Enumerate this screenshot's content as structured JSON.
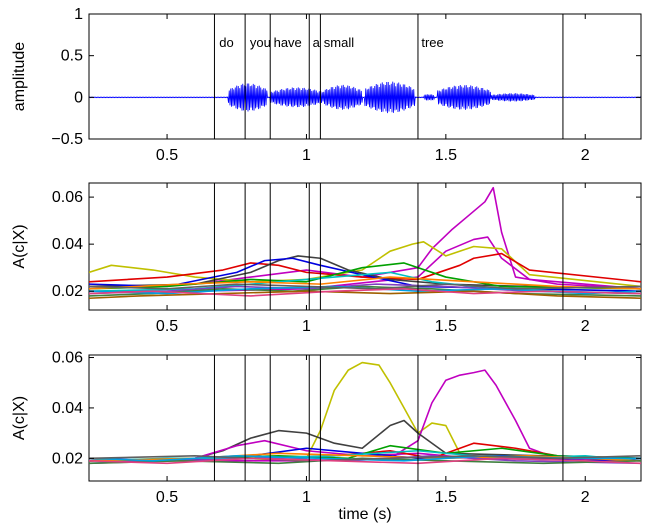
{
  "figure": {
    "xlabel": "time (s)",
    "x_range": [
      0.22,
      2.2
    ],
    "x_ticks": [
      0.5,
      1,
      1.5,
      2
    ],
    "x_tick_labels": [
      "0.5",
      "1",
      "1.5",
      "2"
    ]
  },
  "chart_data": [
    {
      "type": "line",
      "panel": "waveform",
      "ylabel": "amplitude",
      "ylim": [
        -0.5,
        1
      ],
      "y_ticks": [
        -0.5,
        0,
        0.5,
        1
      ],
      "y_tick_labels": [
        "−0.5",
        "0",
        "0.5",
        "1"
      ],
      "line_color": "#0000ff",
      "boundaries": [
        0.67,
        0.78,
        0.87,
        1.01,
        1.05,
        1.4,
        1.92
      ],
      "words": [
        {
          "t": 0.68,
          "label": "do"
        },
        {
          "t": 0.79,
          "label": "you"
        },
        {
          "t": 0.875,
          "label": "have"
        },
        {
          "t": 1.015,
          "label": "a"
        },
        {
          "t": 1.055,
          "label": "small"
        },
        {
          "t": 1.405,
          "label": "tree"
        }
      ],
      "bursts": [
        {
          "t0": 0.72,
          "t1": 0.86,
          "amp": 0.17
        },
        {
          "t0": 0.87,
          "t1": 1.06,
          "amp": 0.12
        },
        {
          "t0": 1.06,
          "t1": 1.2,
          "amp": 0.15
        },
        {
          "t0": 1.21,
          "t1": 1.39,
          "amp": 0.19
        },
        {
          "t0": 1.42,
          "t1": 1.46,
          "amp": 0.04
        },
        {
          "t0": 1.47,
          "t1": 1.66,
          "amp": 0.15
        },
        {
          "t0": 1.66,
          "t1": 1.82,
          "amp": 0.05
        }
      ]
    },
    {
      "type": "line",
      "panel": "middle",
      "ylabel": "A(c|X)",
      "ylim": [
        0.012,
        0.066
      ],
      "y_ticks": [
        0.02,
        0.04,
        0.06
      ],
      "y_tick_labels": [
        "0.02",
        "0.04",
        "0.06"
      ],
      "boundaries": [
        0.67,
        0.78,
        0.87,
        1.01,
        1.05,
        1.4,
        1.92
      ],
      "series": [
        {
          "color": "#c000c0",
          "x": [
            0.22,
            0.4,
            0.6,
            0.8,
            1.0,
            1.2,
            1.4,
            1.45,
            1.52,
            1.58,
            1.64,
            1.67,
            1.7,
            1.75,
            1.9,
            2.2
          ],
          "y": [
            0.022,
            0.022,
            0.023,
            0.026,
            0.029,
            0.026,
            0.03,
            0.038,
            0.046,
            0.052,
            0.058,
            0.064,
            0.045,
            0.026,
            0.023,
            0.021
          ]
        },
        {
          "color": "#c000c0",
          "x": [
            0.22,
            0.6,
            1.0,
            1.4,
            1.5,
            1.6,
            1.65,
            1.7,
            1.8,
            2.2
          ],
          "y": [
            0.02,
            0.02,
            0.021,
            0.026,
            0.037,
            0.042,
            0.043,
            0.034,
            0.025,
            0.021
          ]
        },
        {
          "color": "#c0c000",
          "x": [
            0.22,
            0.3,
            0.45,
            0.6,
            0.8,
            1.0,
            1.2,
            1.3,
            1.38,
            1.42,
            1.5,
            1.6,
            1.7,
            1.8,
            2.2
          ],
          "y": [
            0.028,
            0.031,
            0.029,
            0.026,
            0.024,
            0.025,
            0.029,
            0.037,
            0.04,
            0.041,
            0.035,
            0.039,
            0.038,
            0.027,
            0.022
          ]
        },
        {
          "color": "#e00000",
          "x": [
            0.22,
            0.5,
            0.7,
            0.8,
            0.9,
            1.0,
            1.2,
            1.4,
            1.55,
            1.6,
            1.7,
            1.8,
            2.2
          ],
          "y": [
            0.024,
            0.026,
            0.029,
            0.032,
            0.031,
            0.028,
            0.026,
            0.025,
            0.031,
            0.034,
            0.036,
            0.029,
            0.024
          ]
        },
        {
          "color": "#404040",
          "x": [
            0.22,
            0.6,
            0.8,
            0.9,
            0.97,
            1.05,
            1.15,
            1.3,
            1.5,
            1.8,
            2.2
          ],
          "y": [
            0.022,
            0.023,
            0.028,
            0.033,
            0.035,
            0.034,
            0.029,
            0.025,
            0.023,
            0.022,
            0.021
          ]
        },
        {
          "color": "#0000e0",
          "x": [
            0.22,
            0.5,
            0.75,
            0.85,
            0.95,
            1.05,
            1.2,
            1.4,
            1.8,
            2.2
          ],
          "y": [
            0.023,
            0.022,
            0.028,
            0.033,
            0.034,
            0.031,
            0.027,
            0.022,
            0.021,
            0.02
          ]
        },
        {
          "color": "#00a000",
          "x": [
            0.22,
            0.5,
            0.8,
            1.0,
            1.2,
            1.35,
            1.5,
            1.7,
            2.2
          ],
          "y": [
            0.021,
            0.022,
            0.025,
            0.024,
            0.03,
            0.032,
            0.026,
            0.022,
            0.021
          ]
        },
        {
          "color": "#00c0c0",
          "x": [
            0.22,
            0.6,
            0.9,
            1.1,
            1.3,
            1.45,
            1.6,
            1.9,
            2.2
          ],
          "y": [
            0.02,
            0.021,
            0.024,
            0.026,
            0.028,
            0.024,
            0.022,
            0.02,
            0.019
          ]
        },
        {
          "color": "#ff8000",
          "x": [
            0.22,
            0.55,
            0.8,
            1.05,
            1.3,
            1.6,
            1.9,
            2.2
          ],
          "y": [
            0.021,
            0.023,
            0.024,
            0.023,
            0.026,
            0.024,
            0.022,
            0.021
          ]
        },
        {
          "color": "#8040c0",
          "x": [
            0.22,
            0.5,
            0.75,
            1.0,
            1.25,
            1.5,
            1.8,
            2.2
          ],
          "y": [
            0.019,
            0.02,
            0.022,
            0.021,
            0.023,
            0.022,
            0.02,
            0.019
          ]
        },
        {
          "color": "#408040",
          "x": [
            0.22,
            0.45,
            0.7,
            0.95,
            1.2,
            1.45,
            1.75,
            2.2
          ],
          "y": [
            0.018,
            0.019,
            0.021,
            0.02,
            0.022,
            0.021,
            0.019,
            0.018
          ]
        },
        {
          "color": "#00a0e0",
          "x": [
            0.22,
            0.5,
            0.8,
            1.1,
            1.4,
            1.7,
            2.0,
            2.2
          ],
          "y": [
            0.02,
            0.019,
            0.021,
            0.022,
            0.02,
            0.021,
            0.019,
            0.02
          ]
        },
        {
          "color": "#a06000",
          "x": [
            0.22,
            0.4,
            0.7,
            1.0,
            1.3,
            1.6,
            1.9,
            2.2
          ],
          "y": [
            0.017,
            0.018,
            0.019,
            0.02,
            0.019,
            0.02,
            0.018,
            0.017
          ]
        },
        {
          "color": "#606060",
          "x": [
            0.22,
            0.5,
            0.75,
            1.0,
            1.25,
            1.5,
            1.75,
            2.2
          ],
          "y": [
            0.022,
            0.021,
            0.023,
            0.022,
            0.021,
            0.023,
            0.021,
            0.022
          ]
        },
        {
          "color": "#e04080",
          "x": [
            0.22,
            0.45,
            0.8,
            1.1,
            1.35,
            1.6,
            1.85,
            2.2
          ],
          "y": [
            0.019,
            0.02,
            0.018,
            0.02,
            0.021,
            0.019,
            0.02,
            0.019
          ]
        }
      ]
    },
    {
      "type": "line",
      "panel": "bottom",
      "xlabel": "time (s)",
      "ylabel": "A(c|X)",
      "ylim": [
        0.011,
        0.061
      ],
      "y_ticks": [
        0.02,
        0.04,
        0.06
      ],
      "y_tick_labels": [
        "0.02",
        "0.04",
        "0.06"
      ],
      "boundaries": [
        0.67,
        0.78,
        0.87,
        1.01,
        1.05,
        1.4,
        1.92
      ],
      "series": [
        {
          "color": "#c0c000",
          "x": [
            0.22,
            0.8,
            1.0,
            1.05,
            1.1,
            1.15,
            1.2,
            1.26,
            1.3,
            1.35,
            1.4,
            1.45,
            1.5,
            1.55,
            1.6,
            2.2
          ],
          "y": [
            0.019,
            0.019,
            0.02,
            0.031,
            0.047,
            0.055,
            0.058,
            0.057,
            0.05,
            0.04,
            0.03,
            0.034,
            0.033,
            0.022,
            0.02,
            0.019
          ]
        },
        {
          "color": "#c000c0",
          "x": [
            0.22,
            1.0,
            1.3,
            1.4,
            1.45,
            1.5,
            1.55,
            1.6,
            1.64,
            1.68,
            1.75,
            1.8,
            1.9,
            2.2
          ],
          "y": [
            0.019,
            0.019,
            0.02,
            0.027,
            0.042,
            0.051,
            0.053,
            0.054,
            0.055,
            0.049,
            0.035,
            0.024,
            0.02,
            0.019
          ]
        },
        {
          "color": "#404040",
          "x": [
            0.22,
            0.6,
            0.7,
            0.8,
            0.9,
            1.0,
            1.1,
            1.2,
            1.3,
            1.35,
            1.4,
            1.5,
            2.2
          ],
          "y": [
            0.019,
            0.02,
            0.023,
            0.028,
            0.031,
            0.03,
            0.026,
            0.024,
            0.033,
            0.035,
            0.03,
            0.022,
            0.02
          ]
        },
        {
          "color": "#c000c0",
          "x": [
            0.22,
            0.6,
            0.75,
            0.85,
            1.0,
            1.2,
            1.4,
            1.6,
            2.2
          ],
          "y": [
            0.019,
            0.02,
            0.025,
            0.027,
            0.023,
            0.021,
            0.022,
            0.02,
            0.019
          ]
        },
        {
          "color": "#e00000",
          "x": [
            0.22,
            0.8,
            1.1,
            1.3,
            1.45,
            1.6,
            1.75,
            1.9,
            2.2
          ],
          "y": [
            0.019,
            0.02,
            0.021,
            0.023,
            0.02,
            0.026,
            0.024,
            0.021,
            0.02
          ]
        },
        {
          "color": "#0000e0",
          "x": [
            0.22,
            0.5,
            0.8,
            1.0,
            1.2,
            1.4,
            1.7,
            2.0,
            2.2
          ],
          "y": [
            0.02,
            0.019,
            0.021,
            0.024,
            0.022,
            0.02,
            0.021,
            0.019,
            0.02
          ]
        },
        {
          "color": "#00a000",
          "x": [
            0.22,
            0.6,
            0.9,
            1.15,
            1.3,
            1.5,
            1.7,
            1.9,
            2.2
          ],
          "y": [
            0.019,
            0.02,
            0.021,
            0.02,
            0.025,
            0.022,
            0.024,
            0.021,
            0.02
          ]
        },
        {
          "color": "#00c0c0",
          "x": [
            0.22,
            0.5,
            0.8,
            1.1,
            1.4,
            1.7,
            2.0,
            2.2
          ],
          "y": [
            0.019,
            0.02,
            0.02,
            0.021,
            0.023,
            0.02,
            0.021,
            0.019
          ]
        },
        {
          "color": "#ff8000",
          "x": [
            0.22,
            0.6,
            0.9,
            1.2,
            1.5,
            1.8,
            2.2
          ],
          "y": [
            0.019,
            0.02,
            0.022,
            0.021,
            0.02,
            0.021,
            0.019
          ]
        },
        {
          "color": "#8040c0",
          "x": [
            0.22,
            0.5,
            0.85,
            1.15,
            1.45,
            1.75,
            2.2
          ],
          "y": [
            0.018,
            0.019,
            0.02,
            0.019,
            0.021,
            0.019,
            0.018
          ]
        },
        {
          "color": "#408040",
          "x": [
            0.22,
            0.55,
            0.9,
            1.2,
            1.5,
            1.85,
            2.2
          ],
          "y": [
            0.018,
            0.019,
            0.018,
            0.02,
            0.019,
            0.018,
            0.019
          ]
        },
        {
          "color": "#00a0e0",
          "x": [
            0.22,
            0.45,
            0.75,
            1.05,
            1.35,
            1.65,
            1.95,
            2.2
          ],
          "y": [
            0.02,
            0.019,
            0.021,
            0.02,
            0.019,
            0.021,
            0.02,
            0.02
          ]
        },
        {
          "color": "#606060",
          "x": [
            0.22,
            0.6,
            1.0,
            1.3,
            1.6,
            1.9,
            2.2
          ],
          "y": [
            0.02,
            0.021,
            0.019,
            0.02,
            0.021,
            0.02,
            0.021
          ]
        },
        {
          "color": "#e04080",
          "x": [
            0.22,
            0.5,
            0.8,
            1.1,
            1.4,
            1.7,
            2.0,
            2.2
          ],
          "y": [
            0.019,
            0.018,
            0.02,
            0.019,
            0.018,
            0.02,
            0.019,
            0.018
          ]
        }
      ]
    }
  ]
}
